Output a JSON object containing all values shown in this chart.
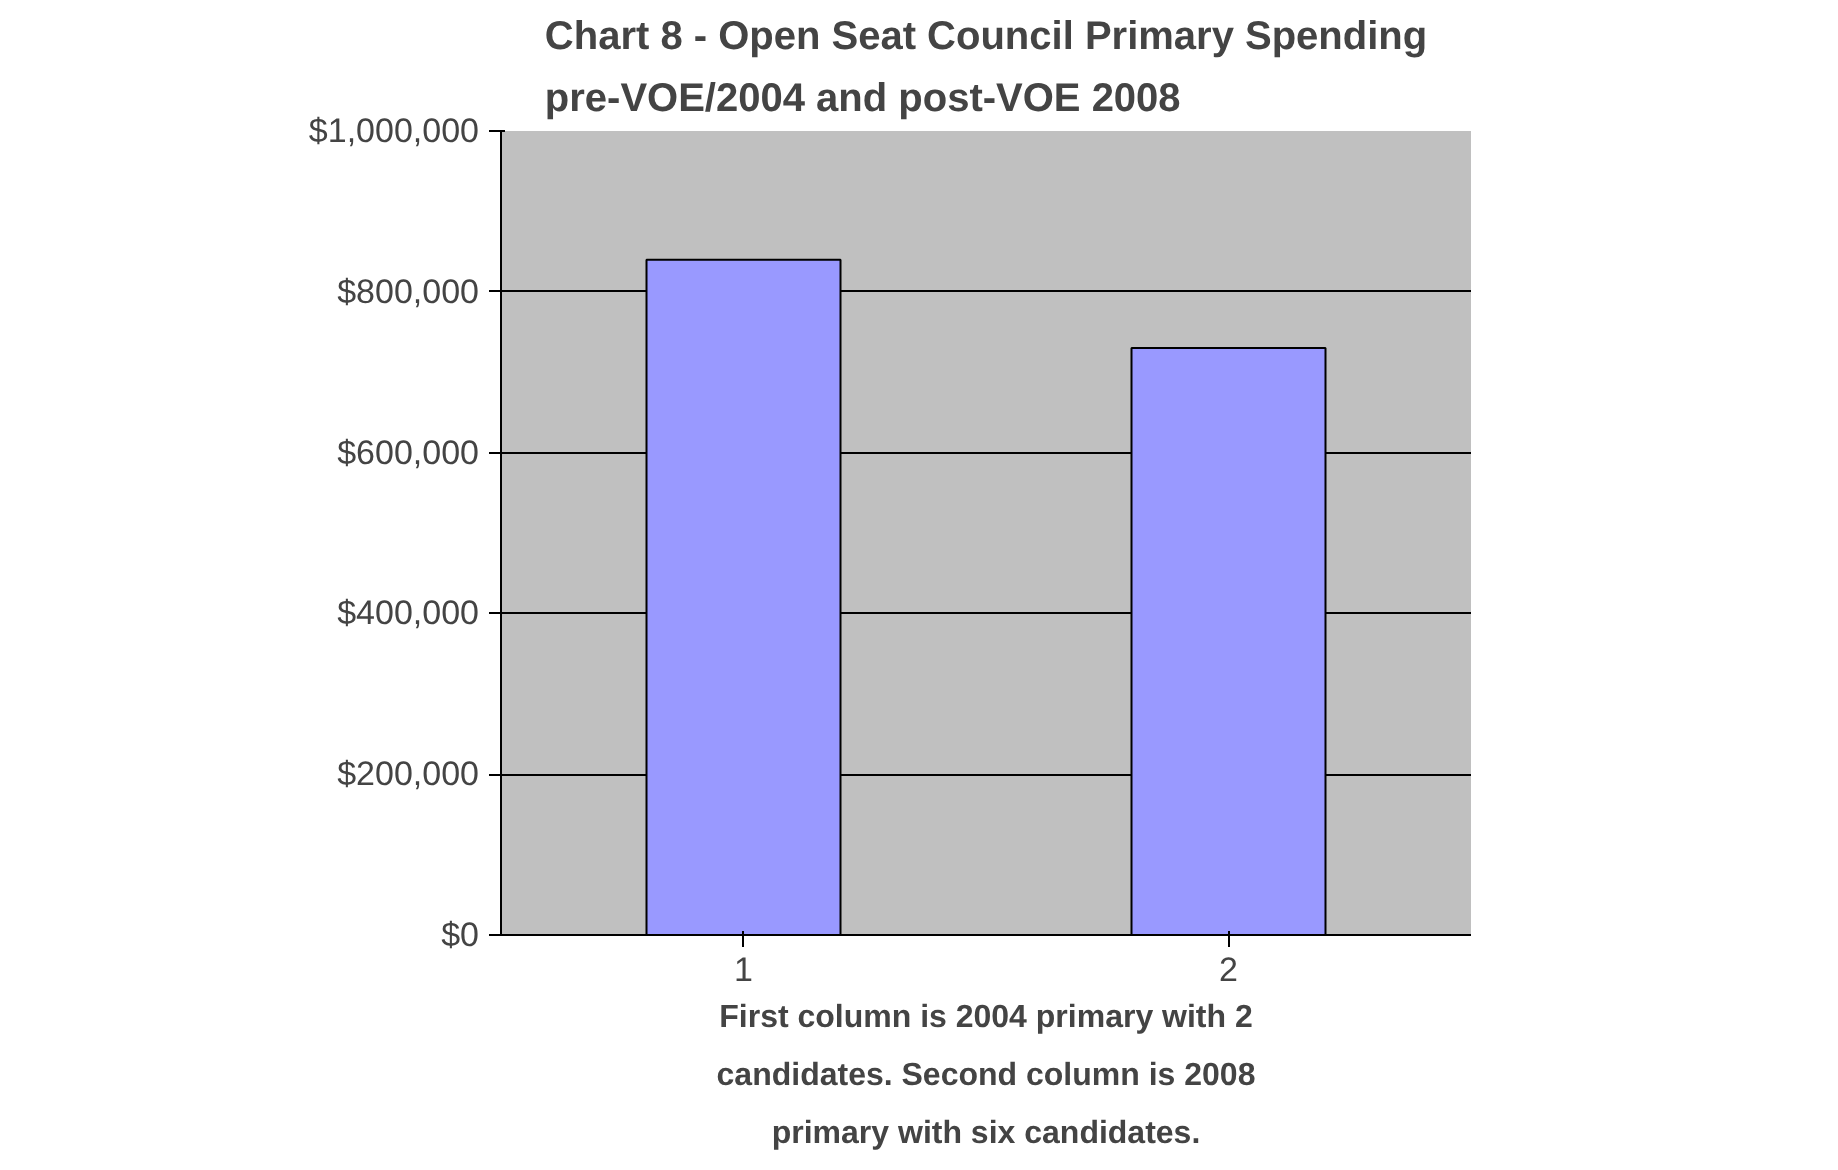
{
  "chart_data": {
    "type": "bar",
    "title": "Chart 8 - Open Seat Council Primary Spending\npre-VOE/2004 and post-VOE 2008",
    "categories": [
      "1",
      "2"
    ],
    "series": [
      {
        "color": "#9999ff",
        "values": [
          840000,
          730000
        ]
      }
    ],
    "ylim": [
      0,
      1000000
    ],
    "yticks": [
      {
        "value": 0,
        "label": "$0"
      },
      {
        "value": 200000,
        "label": "$200,000"
      },
      {
        "value": 400000,
        "label": "$400,000"
      },
      {
        "value": 600000,
        "label": "$600,000"
      },
      {
        "value": 800000,
        "label": "$800,000"
      },
      {
        "value": 1000000,
        "label": "$1,000,000"
      }
    ],
    "grid": "y",
    "annotations": [
      "First column is 2004 primary with 2\ncandidates. Second column is 2008\nprimary with six candidates."
    ]
  }
}
